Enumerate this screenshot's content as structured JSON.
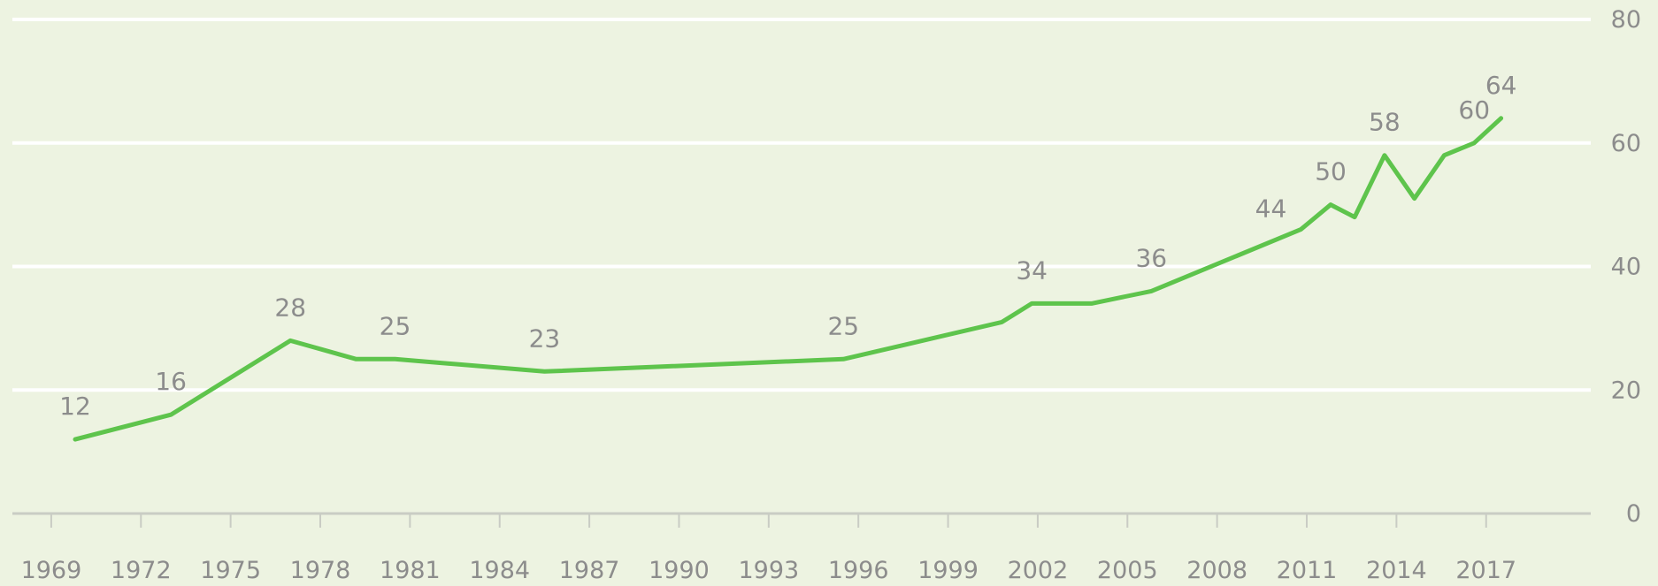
{
  "chart_data": {
    "type": "line",
    "title": "",
    "xlabel": "",
    "ylabel": "",
    "xlim": [
      1967.7,
      2020.5
    ],
    "ylim": [
      0,
      80
    ],
    "y_ticks": [
      0,
      20,
      40,
      60,
      80
    ],
    "x_ticks": [
      1969,
      1972,
      1975,
      1978,
      1981,
      1984,
      1987,
      1990,
      1993,
      1996,
      1999,
      2002,
      2005,
      2008,
      2011,
      2014,
      2017
    ],
    "grid": true,
    "legend": "none",
    "colors": {
      "background": "#edf3e1",
      "line": "#5ec44c",
      "grid": "#ffffff",
      "label": "#8c8c8c"
    },
    "series": [
      {
        "x": [
          1969.8,
          1973,
          1977,
          1979.2,
          1980.5,
          1985.5,
          1995.5,
          2000.8,
          2001.8,
          2003.8,
          2005.8,
          2010.8,
          2011.8,
          2012.6,
          2013.6,
          2014.6,
          2015.6,
          2016.6,
          2017.5
        ],
        "values": [
          12,
          16,
          28,
          25,
          25,
          23,
          25,
          31,
          34,
          34,
          36,
          46,
          50,
          48,
          58,
          51,
          58,
          60,
          64
        ]
      }
    ],
    "data_labels": [
      {
        "x": 1969.8,
        "y": 12,
        "text": "12"
      },
      {
        "x": 1973,
        "y": 16,
        "text": "16"
      },
      {
        "x": 1977,
        "y": 28,
        "text": "28"
      },
      {
        "x": 1980.5,
        "y": 25,
        "text": "25"
      },
      {
        "x": 1985.5,
        "y": 23,
        "text": "23"
      },
      {
        "x": 1995.5,
        "y": 25,
        "text": "25"
      },
      {
        "x": 2001.8,
        "y": 34,
        "text": "34"
      },
      {
        "x": 2005.8,
        "y": 36,
        "text": "36"
      },
      {
        "x": 2009.8,
        "y": 44,
        "text": "44"
      },
      {
        "x": 2011.8,
        "y": 50,
        "text": "50"
      },
      {
        "x": 2013.6,
        "y": 58,
        "text": "58"
      },
      {
        "x": 2016.6,
        "y": 60,
        "text": "60"
      },
      {
        "x": 2017.5,
        "y": 64,
        "text": "64"
      }
    ]
  }
}
